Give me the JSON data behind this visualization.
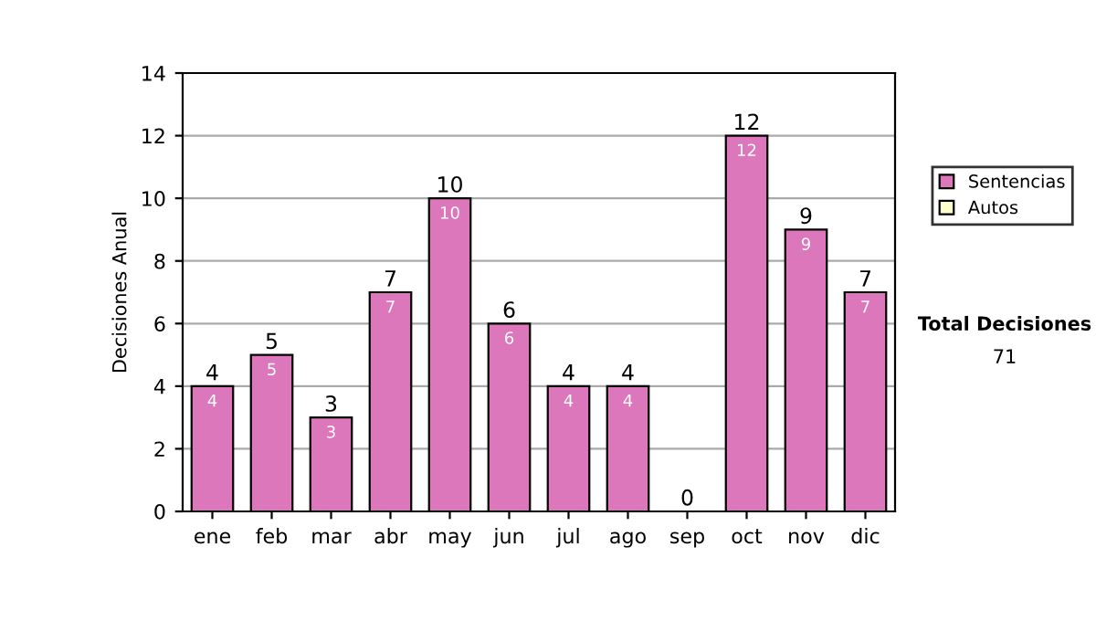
{
  "chart_data": {
    "type": "bar",
    "ylabel": "Decisiones Anual",
    "categories": [
      "ene",
      "feb",
      "mar",
      "abr",
      "may",
      "jun",
      "jul",
      "ago",
      "sep",
      "oct",
      "nov",
      "dic"
    ],
    "stacked": true,
    "series": [
      {
        "name": "Sentencias",
        "color": "#dd77bb",
        "values": [
          4,
          5,
          3,
          7,
          10,
          6,
          4,
          4,
          0,
          12,
          9,
          7
        ],
        "value_labels": [
          "4",
          "5",
          "3",
          "7",
          "10",
          "6",
          "4",
          "4",
          null,
          "12",
          "9",
          "7"
        ]
      },
      {
        "name": "Autos",
        "color": "#ffffcc",
        "values": [
          0,
          0,
          0,
          0,
          0,
          0,
          0,
          0,
          0,
          0,
          0,
          0
        ]
      }
    ],
    "totals": [
      "4",
      "5",
      "3",
      "7",
      "10",
      "6",
      "4",
      "4",
      "0",
      "12",
      "9",
      "7"
    ],
    "ylim": [
      0,
      14
    ],
    "yticks": [
      0,
      2,
      4,
      6,
      8,
      10,
      12,
      14
    ],
    "grid": "y",
    "legend": "right",
    "annotations": [
      "Total Decisiones",
      "71"
    ]
  }
}
